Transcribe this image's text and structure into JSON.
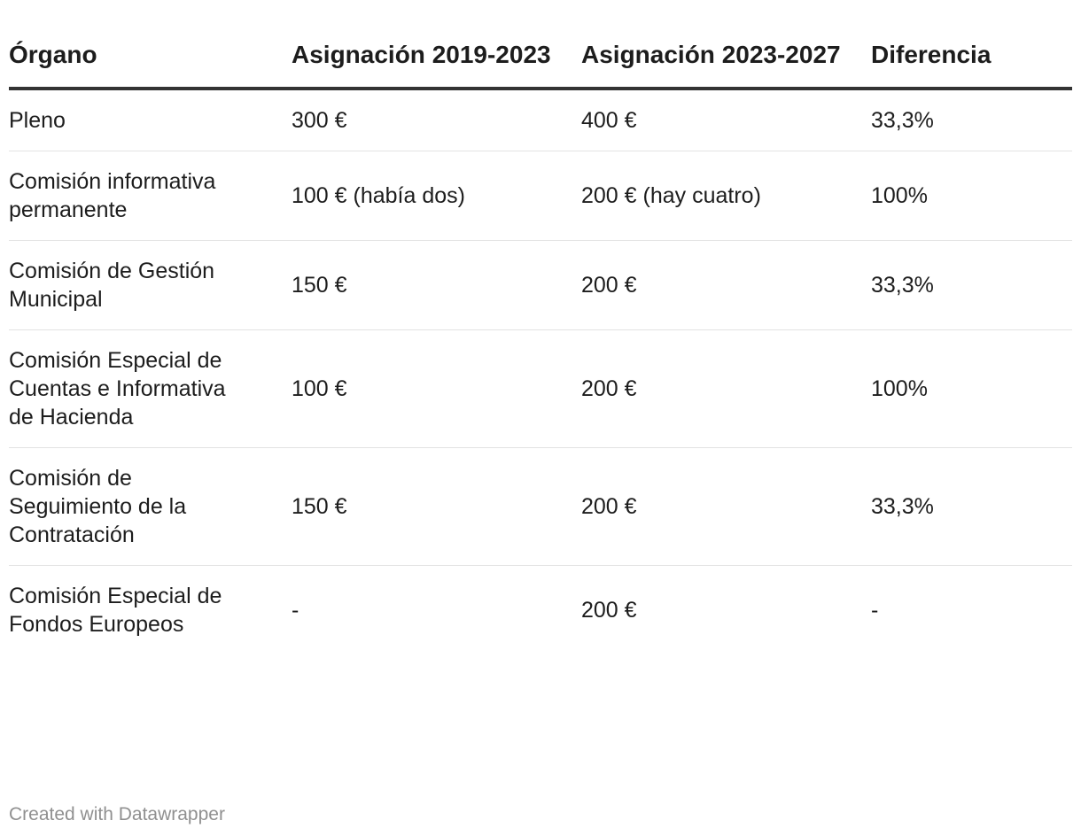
{
  "chart_data": {
    "type": "table",
    "columns": [
      "Órgano",
      "Asignación 2019-2023",
      "Asignación 2023-2027",
      "Diferencia"
    ],
    "rows": [
      [
        "Pleno",
        "300 €",
        "400 €",
        "33,3%"
      ],
      [
        "Comisión informativa permanente",
        "100 € (había dos)",
        "200 € (hay cuatro)",
        "100%"
      ],
      [
        "Comisión de Gestión Municipal",
        "150 €",
        "200 €",
        "33,3%"
      ],
      [
        "Comisión Especial de Cuentas e Informativa de Hacienda",
        "100 €",
        "200 €",
        "100%"
      ],
      [
        "Comisión de Seguimiento de la Contratación",
        "150 €",
        "200 €",
        "33,3%"
      ],
      [
        "Comisión Especial de Fondos Europeos",
        "-",
        "200 €",
        "-"
      ]
    ]
  },
  "footer": {
    "credit": "Created with Datawrapper"
  },
  "colors": {
    "text": "#1d1d1d",
    "header_rule": "#333333",
    "row_rule": "#e3e3e3",
    "footer_text": "#909090"
  }
}
